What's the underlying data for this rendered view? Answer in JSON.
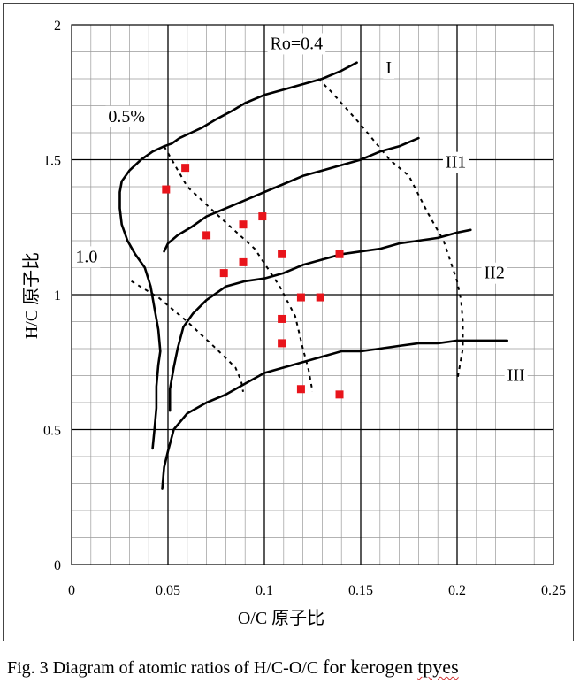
{
  "caption": {
    "prefix": "Fig. 3 Diagram of atomic ratios of H/C-O/C",
    "tail": "for kerogen",
    "misspelled": "tpyes"
  },
  "chart_data": {
    "type": "line",
    "title": "",
    "xlabel": "O/C 原子比",
    "ylabel": "H/C 原子比",
    "xlim": [
      0,
      0.25
    ],
    "ylim": [
      0,
      2
    ],
    "x_ticks": [
      {
        "v": 0,
        "label": "0"
      },
      {
        "v": 0.05,
        "label": "0.05"
      },
      {
        "v": 0.1,
        "label": "0.1"
      },
      {
        "v": 0.15,
        "label": "0.15"
      },
      {
        "v": 0.2,
        "label": "0.2"
      },
      {
        "v": 0.25,
        "label": "0.25"
      }
    ],
    "y_ticks": [
      {
        "v": 0,
        "label": "0"
      },
      {
        "v": 0.5,
        "label": "0.5"
      },
      {
        "v": 1,
        "label": "1"
      },
      {
        "v": 1.5,
        "label": "1.5"
      },
      {
        "v": 2,
        "label": "2"
      }
    ],
    "grid": {
      "minor_x": 0.01,
      "minor_y": 0.1,
      "major_x": 0.05,
      "major_y": 0.5
    },
    "evolution_curves": [
      {
        "name": "I",
        "points": [
          [
            0.048,
            1.55
          ],
          [
            0.052,
            1.56
          ],
          [
            0.056,
            1.58
          ],
          [
            0.062,
            1.6
          ],
          [
            0.068,
            1.62
          ],
          [
            0.075,
            1.65
          ],
          [
            0.083,
            1.68
          ],
          [
            0.09,
            1.71
          ],
          [
            0.1,
            1.74
          ],
          [
            0.11,
            1.76
          ],
          [
            0.12,
            1.78
          ],
          [
            0.13,
            1.8
          ],
          [
            0.14,
            1.83
          ],
          [
            0.148,
            1.86
          ]
        ]
      },
      {
        "name": "II1",
        "points": [
          [
            0.048,
            1.16
          ],
          [
            0.05,
            1.19
          ],
          [
            0.055,
            1.22
          ],
          [
            0.062,
            1.25
          ],
          [
            0.07,
            1.29
          ],
          [
            0.08,
            1.32
          ],
          [
            0.09,
            1.35
          ],
          [
            0.1,
            1.38
          ],
          [
            0.11,
            1.41
          ],
          [
            0.12,
            1.44
          ],
          [
            0.13,
            1.46
          ],
          [
            0.14,
            1.48
          ],
          [
            0.15,
            1.5
          ],
          [
            0.16,
            1.53
          ],
          [
            0.17,
            1.55
          ],
          [
            0.18,
            1.58
          ]
        ]
      },
      {
        "name": "II2",
        "points": [
          [
            0.051,
            0.57
          ],
          [
            0.051,
            0.65
          ],
          [
            0.053,
            0.73
          ],
          [
            0.055,
            0.8
          ],
          [
            0.058,
            0.88
          ],
          [
            0.063,
            0.93
          ],
          [
            0.07,
            0.98
          ],
          [
            0.08,
            1.03
          ],
          [
            0.09,
            1.05
          ],
          [
            0.1,
            1.06
          ],
          [
            0.11,
            1.08
          ],
          [
            0.12,
            1.11
          ],
          [
            0.13,
            1.13
          ],
          [
            0.14,
            1.15
          ],
          [
            0.15,
            1.16
          ],
          [
            0.16,
            1.17
          ],
          [
            0.17,
            1.19
          ],
          [
            0.18,
            1.2
          ],
          [
            0.19,
            1.21
          ],
          [
            0.2,
            1.23
          ],
          [
            0.207,
            1.24
          ]
        ]
      },
      {
        "name": "III",
        "points": [
          [
            0.047,
            0.28
          ],
          [
            0.048,
            0.36
          ],
          [
            0.05,
            0.42
          ],
          [
            0.053,
            0.5
          ],
          [
            0.06,
            0.56
          ],
          [
            0.07,
            0.6
          ],
          [
            0.08,
            0.63
          ],
          [
            0.09,
            0.67
          ],
          [
            0.1,
            0.71
          ],
          [
            0.11,
            0.73
          ],
          [
            0.12,
            0.75
          ],
          [
            0.13,
            0.77
          ],
          [
            0.14,
            0.79
          ],
          [
            0.15,
            0.79
          ],
          [
            0.16,
            0.8
          ],
          [
            0.17,
            0.81
          ],
          [
            0.18,
            0.82
          ],
          [
            0.19,
            0.82
          ],
          [
            0.2,
            0.83
          ],
          [
            0.21,
            0.83
          ],
          [
            0.226,
            0.83
          ]
        ]
      },
      {
        "name": "",
        "points": [
          [
            0.042,
            0.43
          ],
          [
            0.043,
            0.5
          ],
          [
            0.044,
            0.58
          ],
          [
            0.044,
            0.66
          ],
          [
            0.045,
            0.74
          ],
          [
            0.046,
            0.79
          ],
          [
            0.045,
            0.87
          ],
          [
            0.043,
            0.95
          ],
          [
            0.041,
            1.03
          ],
          [
            0.038,
            1.1
          ],
          [
            0.033,
            1.15
          ],
          [
            0.029,
            1.2
          ],
          [
            0.026,
            1.26
          ],
          [
            0.025,
            1.32
          ],
          [
            0.025,
            1.38
          ],
          [
            0.026,
            1.42
          ],
          [
            0.03,
            1.46
          ],
          [
            0.036,
            1.5
          ],
          [
            0.042,
            1.53
          ],
          [
            0.048,
            1.55
          ]
        ]
      }
    ],
    "maturity_lines": [
      {
        "name": "Ro=0.4",
        "points": [
          [
            0.128,
            1.8
          ],
          [
            0.135,
            1.75
          ],
          [
            0.15,
            1.63
          ],
          [
            0.165,
            1.5
          ],
          [
            0.175,
            1.44
          ],
          [
            0.185,
            1.3
          ],
          [
            0.193,
            1.2
          ],
          [
            0.2,
            1.05
          ],
          [
            0.202,
            0.98
          ],
          [
            0.203,
            0.9
          ],
          [
            0.203,
            0.8
          ],
          [
            0.2,
            0.68
          ]
        ]
      },
      {
        "name": "0.5%",
        "points": [
          [
            0.048,
            1.55
          ],
          [
            0.06,
            1.4
          ],
          [
            0.075,
            1.3
          ],
          [
            0.095,
            1.17
          ],
          [
            0.108,
            1.03
          ],
          [
            0.116,
            0.92
          ],
          [
            0.12,
            0.8
          ],
          [
            0.123,
            0.72
          ],
          [
            0.125,
            0.64
          ]
        ]
      },
      {
        "name": "1.0",
        "points": [
          [
            0.031,
            1.05
          ],
          [
            0.045,
            0.99
          ],
          [
            0.06,
            0.9
          ],
          [
            0.075,
            0.8
          ],
          [
            0.085,
            0.73
          ],
          [
            0.088,
            0.68
          ],
          [
            0.089,
            0.64
          ]
        ]
      }
    ],
    "samples": [
      [
        0.049,
        1.39
      ],
      [
        0.059,
        1.47
      ],
      [
        0.07,
        1.22
      ],
      [
        0.079,
        1.08
      ],
      [
        0.089,
        1.26
      ],
      [
        0.089,
        1.12
      ],
      [
        0.099,
        1.29
      ],
      [
        0.109,
        1.15
      ],
      [
        0.109,
        0.91
      ],
      [
        0.109,
        0.82
      ],
      [
        0.119,
        0.99
      ],
      [
        0.119,
        0.65
      ],
      [
        0.129,
        0.99
      ],
      [
        0.139,
        1.15
      ],
      [
        0.139,
        0.63
      ]
    ],
    "annotations": [
      {
        "text": "Ro=0.4",
        "x": 0.103,
        "y": 1.91
      },
      {
        "text": "I",
        "x": 0.163,
        "y": 1.82
      },
      {
        "text": "0.5%",
        "x": 0.019,
        "y": 1.64
      },
      {
        "text": "II1",
        "x": 0.194,
        "y": 1.47
      },
      {
        "text": "1.0",
        "x": 0.002,
        "y": 1.12
      },
      {
        "text": "II2",
        "x": 0.214,
        "y": 1.06
      },
      {
        "text": "III",
        "x": 0.226,
        "y": 0.68
      }
    ],
    "colors": {
      "curve": "#000000",
      "sample": "#e8141b",
      "grid_minor": "#9a9a9a",
      "grid_major": "#000000"
    }
  }
}
